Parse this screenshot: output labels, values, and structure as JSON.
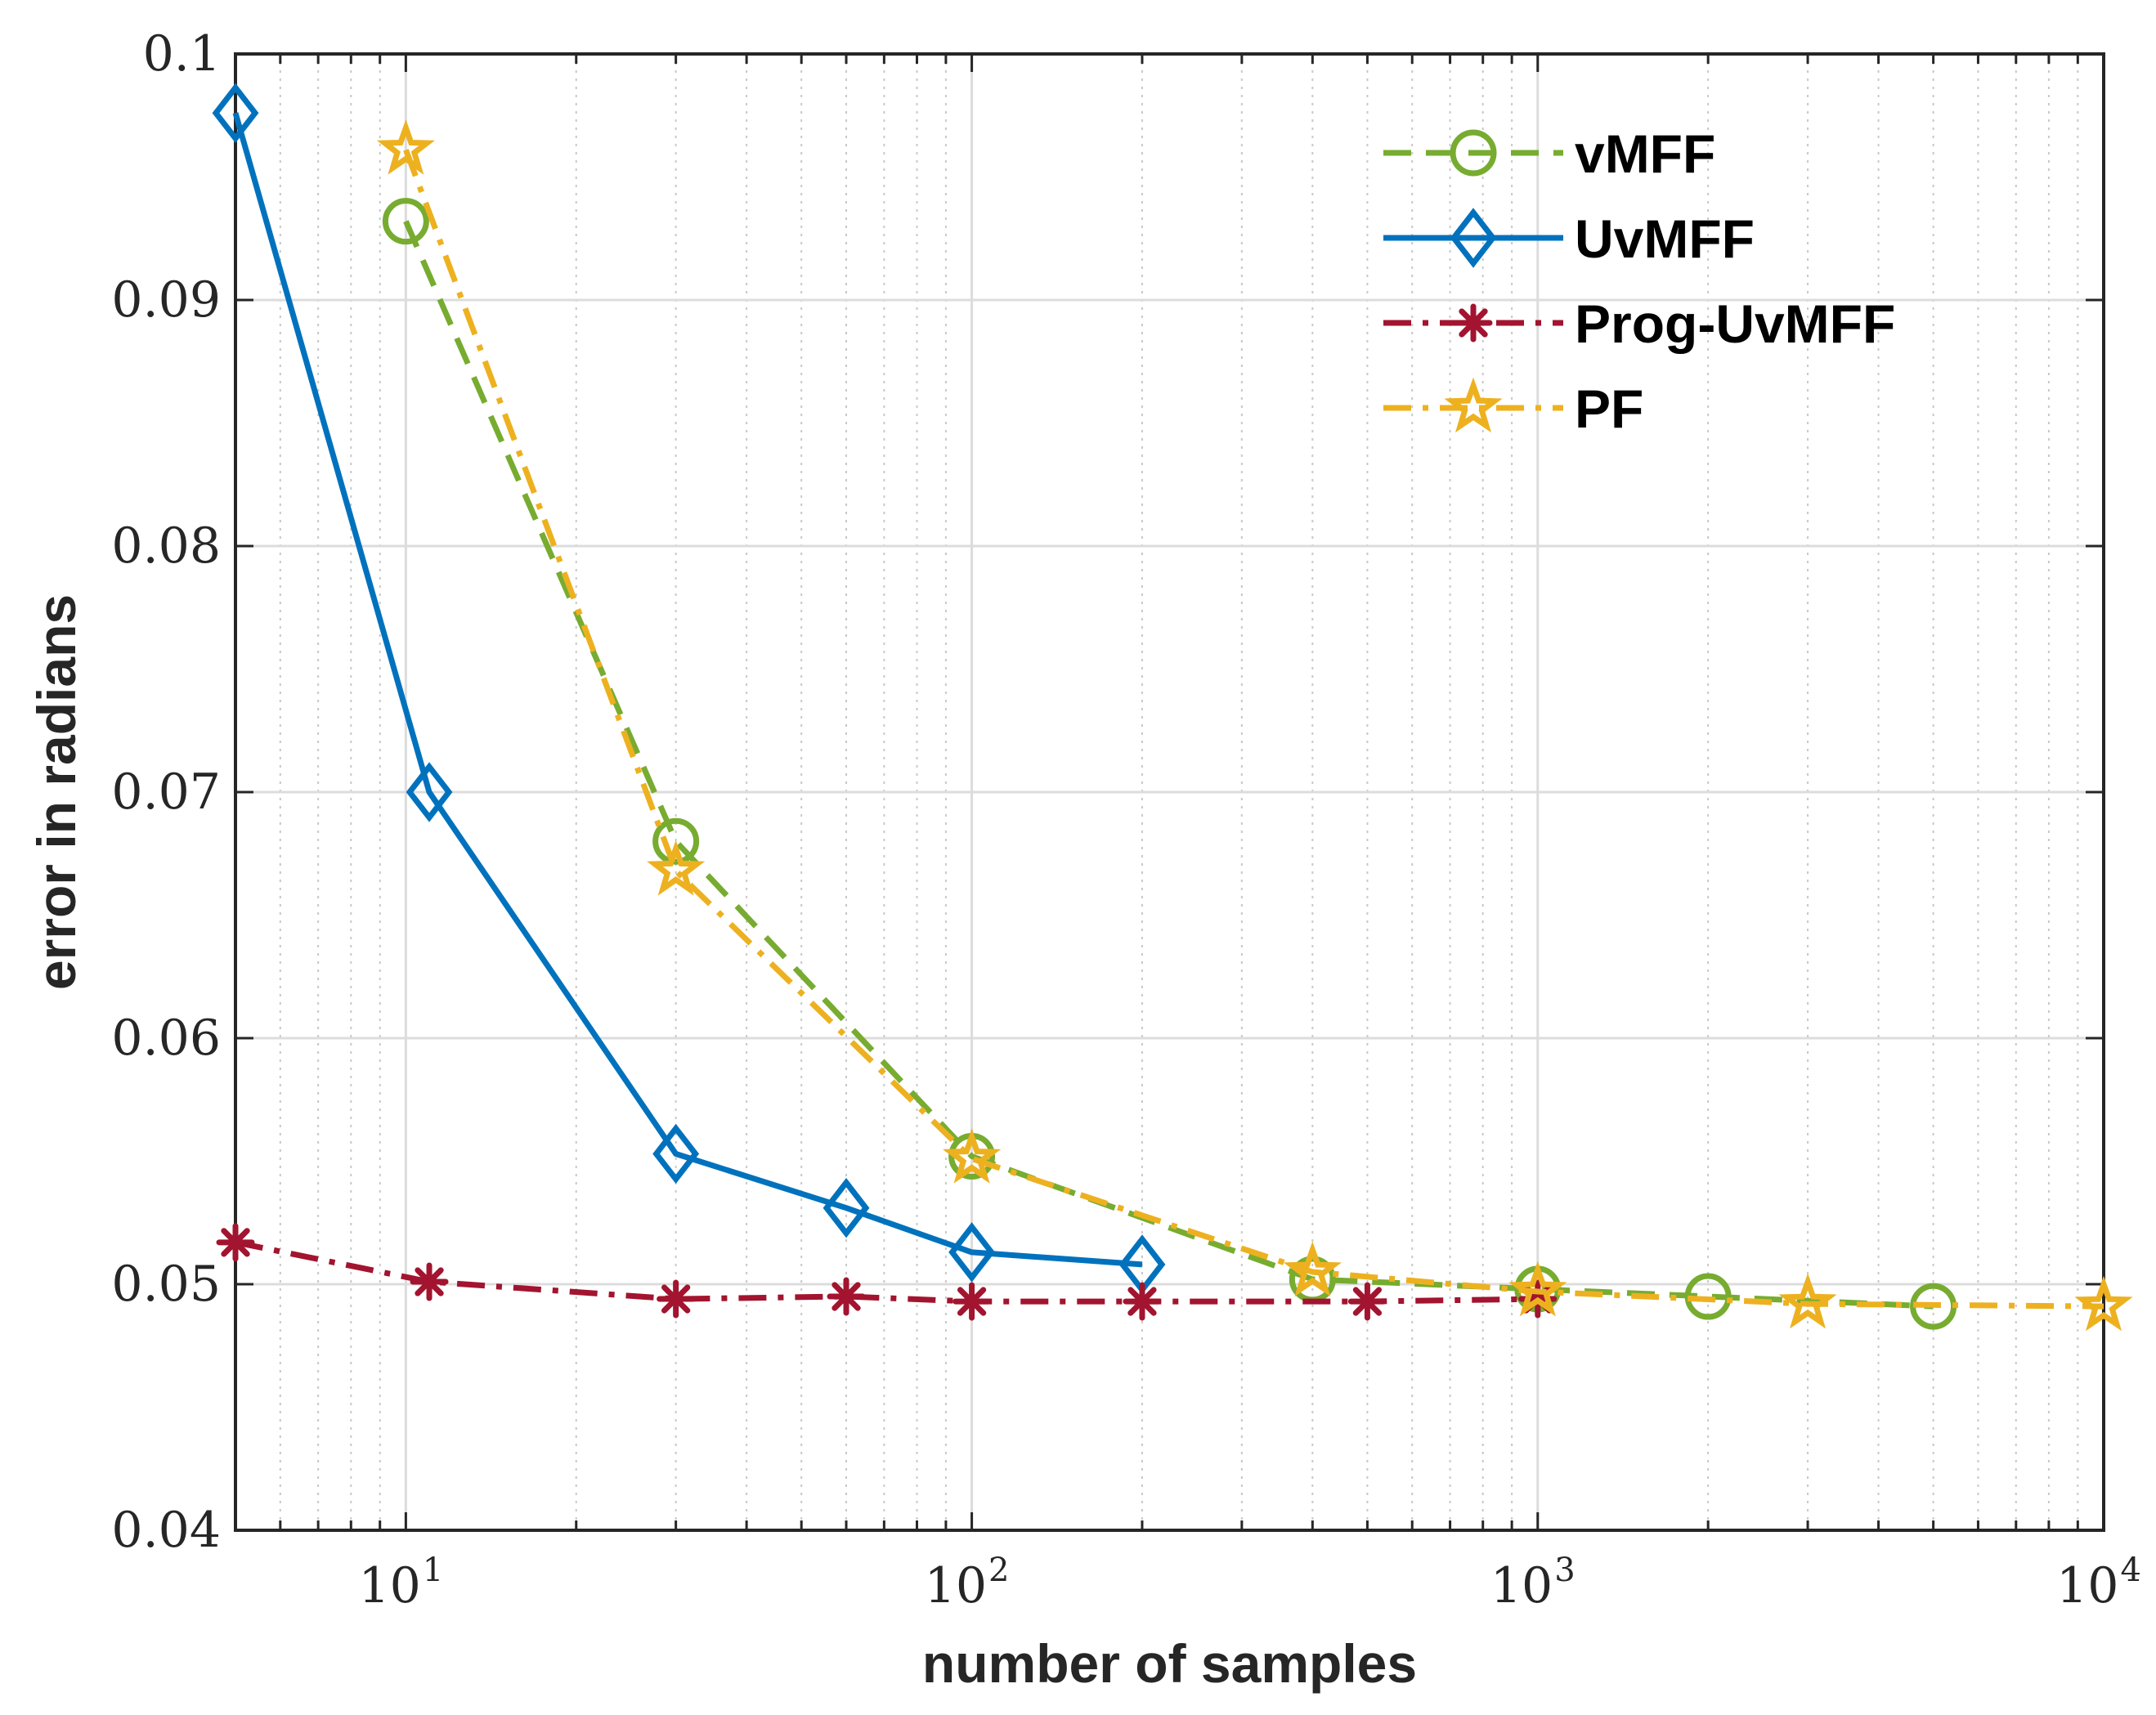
{
  "chart_data": {
    "type": "line",
    "xscale": "log",
    "xlim": [
      5,
      10000
    ],
    "ylim": [
      0.04,
      0.1
    ],
    "xlabel": "number of samples",
    "ylabel": "error in radians",
    "grid": true,
    "minor_grid_x": true,
    "legend_position": "top-right",
    "y_ticks": [
      0.04,
      0.05,
      0.06,
      0.07,
      0.08,
      0.09,
      0.1
    ],
    "y_tick_labels": [
      "0.04",
      "0.05",
      "0.06",
      "0.07",
      "0.08",
      "0.09",
      "0.1"
    ],
    "x_ticks": [
      10,
      100,
      1000,
      10000
    ],
    "x_tick_labels": [
      {
        "base": "10",
        "exp": "1"
      },
      {
        "base": "10",
        "exp": "2"
      },
      {
        "base": "10",
        "exp": "3"
      },
      {
        "base": "10",
        "exp": "4"
      }
    ],
    "series": [
      {
        "name": "vMFF",
        "color": "#77AC30",
        "line": "dashed",
        "marker": "circle",
        "x": [
          10,
          30,
          100,
          400,
          1000,
          2000,
          5000
        ],
        "y": [
          0.0932,
          0.068,
          0.0552,
          0.0502,
          0.0498,
          0.0495,
          0.0491
        ]
      },
      {
        "name": "UvMFF",
        "color": "#0072BD",
        "line": "solid",
        "marker": "diamond",
        "x": [
          5,
          11,
          30,
          60,
          100,
          200
        ],
        "y": [
          0.0976,
          0.07,
          0.0553,
          0.0531,
          0.0513,
          0.0508
        ]
      },
      {
        "name": "Prog-UvMFF",
        "color": "#A2142F",
        "line": "dashdot",
        "marker": "asterisk",
        "x": [
          5,
          11,
          30,
          60,
          100,
          200,
          500,
          1000
        ],
        "y": [
          0.0517,
          0.0501,
          0.0494,
          0.0495,
          0.0493,
          0.0493,
          0.0493,
          0.0494
        ]
      },
      {
        "name": "PF",
        "color": "#EDB120",
        "line": "dashdot",
        "marker": "star",
        "x": [
          10,
          30,
          100,
          400,
          1000,
          3000,
          10000
        ],
        "y": [
          0.0961,
          0.0668,
          0.0551,
          0.0505,
          0.0497,
          0.0492,
          0.0491
        ]
      }
    ]
  }
}
